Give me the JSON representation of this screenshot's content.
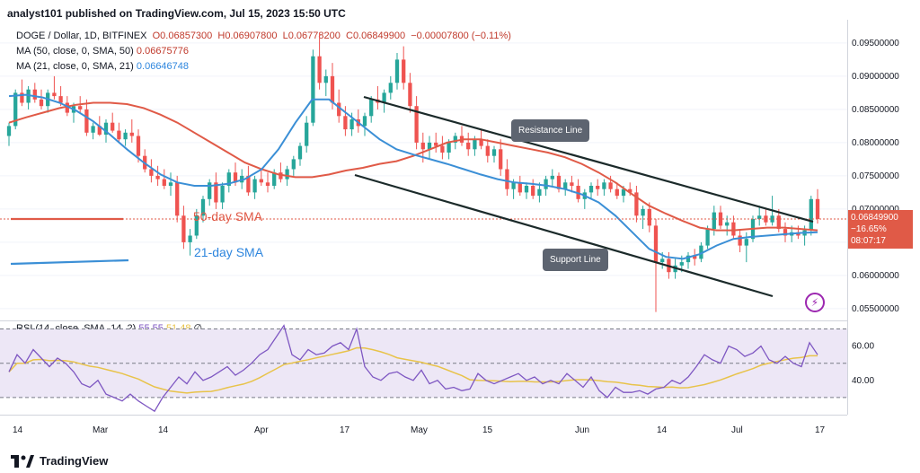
{
  "header": {
    "publisher": "analyst101 published on TradingView.com, Jul 15, 2023 15:50 UTC"
  },
  "legend": {
    "symbol": "DOGE / Dollar, 1D, BITFINEX",
    "o_label": "O",
    "o": "0.06857300",
    "h_label": "H",
    "h": "0.06907800",
    "l_label": "L",
    "l": "0.06778200",
    "c_label": "C",
    "c": "0.06849900",
    "change": "−0.00007800 (−0.11%)",
    "ma50_label": "MA (50, close, 0, SMA, 50)",
    "ma50_value": "0.06675776",
    "ma21_label": "MA (21, close, 0, SMA, 21)",
    "ma21_value": "0.06646748"
  },
  "rsi_legend": {
    "label": "RSI (14, close, SMA, 14, 2)",
    "rsi": "55.55",
    "sma": "51.48",
    "symbol": "∅"
  },
  "annotations": {
    "sma50": "50-day SMA",
    "sma21": "21-day SMA",
    "resistance": "Resistance Line",
    "support": "Support Line"
  },
  "price_badge": {
    "price": "0.06849900",
    "change": "−16.65%",
    "countdown": "08:07:17"
  },
  "footer": {
    "brand": "TradingView"
  },
  "colors": {
    "up": "#26a69a",
    "down": "#ef5350",
    "ma50": "#e05a47",
    "ma21": "#3b8fd6",
    "rsi": "#7e57c2",
    "rsi_sma": "#e8c34a",
    "rsi_band": "#ede7f6",
    "channel": "#1b2a2a",
    "badge": "#e05a47",
    "bolt": "#9c27b0"
  },
  "chart_data": {
    "type": "candlestick",
    "y_ticks": [
      "0.09500000",
      "0.09000000",
      "0.08500000",
      "0.08000000",
      "0.07500000",
      "0.07000000",
      "0.06500000",
      "0.06000000",
      "0.05500000"
    ],
    "ylim": [
      0.0535,
      0.0985
    ],
    "x_ticks": [
      "14",
      "Mar",
      "14",
      "Apr",
      "17",
      "May",
      "15",
      "Jun",
      "14",
      "Jul",
      "17"
    ],
    "rsi": {
      "y_ticks": [
        "60.00",
        "40.00"
      ],
      "upper": 70,
      "mid": 50,
      "lower": 30
    },
    "ohlc": [
      [
        0.081,
        0.083,
        0.0795,
        0.0825
      ],
      [
        0.0825,
        0.088,
        0.082,
        0.0875
      ],
      [
        0.0875,
        0.0895,
        0.0855,
        0.086
      ],
      [
        0.086,
        0.0885,
        0.085,
        0.088
      ],
      [
        0.088,
        0.089,
        0.086,
        0.0865
      ],
      [
        0.0865,
        0.088,
        0.085,
        0.0855
      ],
      [
        0.0855,
        0.088,
        0.0845,
        0.0875
      ],
      [
        0.0875,
        0.09,
        0.0865,
        0.087
      ],
      [
        0.087,
        0.0885,
        0.0855,
        0.086
      ],
      [
        0.086,
        0.087,
        0.084,
        0.0845
      ],
      [
        0.0845,
        0.086,
        0.083,
        0.0855
      ],
      [
        0.0855,
        0.087,
        0.0845,
        0.085
      ],
      [
        0.085,
        0.0865,
        0.081,
        0.0815
      ],
      [
        0.0815,
        0.083,
        0.0805,
        0.0825
      ],
      [
        0.0825,
        0.084,
        0.081,
        0.0812
      ],
      [
        0.0812,
        0.0835,
        0.08,
        0.083
      ],
      [
        0.083,
        0.0845,
        0.0815,
        0.0818
      ],
      [
        0.0818,
        0.083,
        0.08,
        0.0805
      ],
      [
        0.0805,
        0.082,
        0.0795,
        0.0815
      ],
      [
        0.0815,
        0.0835,
        0.08,
        0.081
      ],
      [
        0.081,
        0.082,
        0.077,
        0.078
      ],
      [
        0.078,
        0.079,
        0.0755,
        0.076
      ],
      [
        0.076,
        0.0775,
        0.074,
        0.075
      ],
      [
        0.075,
        0.0765,
        0.0735,
        0.0745
      ],
      [
        0.0745,
        0.076,
        0.073,
        0.0735
      ],
      [
        0.0735,
        0.0755,
        0.072,
        0.074
      ],
      [
        0.074,
        0.075,
        0.068,
        0.069
      ],
      [
        0.069,
        0.0705,
        0.064,
        0.065
      ],
      [
        0.065,
        0.067,
        0.063,
        0.066
      ],
      [
        0.066,
        0.07,
        0.0655,
        0.069
      ],
      [
        0.069,
        0.072,
        0.068,
        0.0715
      ],
      [
        0.0715,
        0.0745,
        0.0705,
        0.074
      ],
      [
        0.074,
        0.0755,
        0.07,
        0.071
      ],
      [
        0.071,
        0.074,
        0.07,
        0.0735
      ],
      [
        0.0735,
        0.076,
        0.0725,
        0.0755
      ],
      [
        0.0755,
        0.077,
        0.0735,
        0.074
      ],
      [
        0.074,
        0.076,
        0.073,
        0.075
      ],
      [
        0.075,
        0.0765,
        0.072,
        0.0725
      ],
      [
        0.0725,
        0.075,
        0.0715,
        0.0745
      ],
      [
        0.0745,
        0.076,
        0.0735,
        0.074
      ],
      [
        0.074,
        0.0755,
        0.0725,
        0.0735
      ],
      [
        0.0735,
        0.076,
        0.073,
        0.0755
      ],
      [
        0.0755,
        0.077,
        0.074,
        0.0745
      ],
      [
        0.0745,
        0.0765,
        0.0735,
        0.076
      ],
      [
        0.076,
        0.078,
        0.075,
        0.0775
      ],
      [
        0.0775,
        0.08,
        0.0765,
        0.0795
      ],
      [
        0.0795,
        0.084,
        0.0785,
        0.083
      ],
      [
        0.083,
        0.094,
        0.0825,
        0.093
      ],
      [
        0.093,
        0.0965,
        0.088,
        0.089
      ],
      [
        0.089,
        0.091,
        0.087,
        0.09
      ],
      [
        0.09,
        0.092,
        0.085,
        0.086
      ],
      [
        0.086,
        0.088,
        0.083,
        0.084
      ],
      [
        0.084,
        0.0855,
        0.081,
        0.082
      ],
      [
        0.082,
        0.0845,
        0.081,
        0.0835
      ],
      [
        0.0835,
        0.085,
        0.0815,
        0.0825
      ],
      [
        0.0825,
        0.0845,
        0.081,
        0.084
      ],
      [
        0.084,
        0.087,
        0.083,
        0.0865
      ],
      [
        0.0865,
        0.0885,
        0.085,
        0.086
      ],
      [
        0.086,
        0.088,
        0.0845,
        0.0875
      ],
      [
        0.0875,
        0.09,
        0.0865,
        0.089
      ],
      [
        0.089,
        0.0935,
        0.088,
        0.0925
      ],
      [
        0.0925,
        0.0945,
        0.088,
        0.089
      ],
      [
        0.089,
        0.0905,
        0.0845,
        0.0855
      ],
      [
        0.0855,
        0.087,
        0.079,
        0.08
      ],
      [
        0.08,
        0.0815,
        0.077,
        0.079
      ],
      [
        0.079,
        0.081,
        0.0775,
        0.08
      ],
      [
        0.08,
        0.0815,
        0.0785,
        0.0795
      ],
      [
        0.0795,
        0.081,
        0.0775,
        0.0785
      ],
      [
        0.0785,
        0.0805,
        0.0775,
        0.08
      ],
      [
        0.08,
        0.0815,
        0.079,
        0.081
      ],
      [
        0.081,
        0.0825,
        0.0795,
        0.08
      ],
      [
        0.08,
        0.0815,
        0.078,
        0.079
      ],
      [
        0.079,
        0.081,
        0.078,
        0.0805
      ],
      [
        0.0805,
        0.082,
        0.079,
        0.0795
      ],
      [
        0.0795,
        0.0805,
        0.077,
        0.078
      ],
      [
        0.078,
        0.0795,
        0.077,
        0.079
      ],
      [
        0.079,
        0.0805,
        0.075,
        0.076
      ],
      [
        0.076,
        0.0775,
        0.072,
        0.073
      ],
      [
        0.073,
        0.0745,
        0.0715,
        0.074
      ],
      [
        0.074,
        0.075,
        0.072,
        0.0725
      ],
      [
        0.0725,
        0.074,
        0.0715,
        0.0735
      ],
      [
        0.0735,
        0.0745,
        0.0715,
        0.072
      ],
      [
        0.072,
        0.074,
        0.071,
        0.073
      ],
      [
        0.073,
        0.075,
        0.072,
        0.0745
      ],
      [
        0.0745,
        0.076,
        0.0735,
        0.075
      ],
      [
        0.075,
        0.0755,
        0.0725,
        0.073
      ],
      [
        0.073,
        0.0745,
        0.072,
        0.074
      ],
      [
        0.074,
        0.075,
        0.0725,
        0.0735
      ],
      [
        0.0735,
        0.0745,
        0.071,
        0.0715
      ],
      [
        0.0715,
        0.073,
        0.07,
        0.0725
      ],
      [
        0.0725,
        0.074,
        0.0715,
        0.0735
      ],
      [
        0.0735,
        0.0745,
        0.072,
        0.073
      ],
      [
        0.073,
        0.0745,
        0.072,
        0.074
      ],
      [
        0.074,
        0.075,
        0.0725,
        0.073
      ],
      [
        0.073,
        0.074,
        0.0715,
        0.072
      ],
      [
        0.072,
        0.0735,
        0.071,
        0.073
      ],
      [
        0.073,
        0.074,
        0.072,
        0.0725
      ],
      [
        0.0725,
        0.0735,
        0.068,
        0.069
      ],
      [
        0.069,
        0.0705,
        0.067,
        0.07
      ],
      [
        0.07,
        0.071,
        0.0665,
        0.0675
      ],
      [
        0.0675,
        0.0685,
        0.0545,
        0.062
      ],
      [
        0.062,
        0.0635,
        0.061,
        0.0625
      ],
      [
        0.0625,
        0.0635,
        0.0595,
        0.0605
      ],
      [
        0.0605,
        0.0625,
        0.0595,
        0.0615
      ],
      [
        0.0615,
        0.063,
        0.0605,
        0.062
      ],
      [
        0.062,
        0.0635,
        0.061,
        0.063
      ],
      [
        0.063,
        0.064,
        0.0615,
        0.0625
      ],
      [
        0.0625,
        0.065,
        0.062,
        0.0645
      ],
      [
        0.0645,
        0.0675,
        0.064,
        0.067
      ],
      [
        0.067,
        0.0705,
        0.066,
        0.0695
      ],
      [
        0.0695,
        0.0705,
        0.067,
        0.0675
      ],
      [
        0.0675,
        0.069,
        0.066,
        0.068
      ],
      [
        0.068,
        0.069,
        0.0655,
        0.066
      ],
      [
        0.066,
        0.067,
        0.0635,
        0.0645
      ],
      [
        0.0645,
        0.0665,
        0.062,
        0.0655
      ],
      [
        0.0655,
        0.069,
        0.065,
        0.0685
      ],
      [
        0.0685,
        0.0705,
        0.0675,
        0.069
      ],
      [
        0.069,
        0.07,
        0.0675,
        0.068
      ],
      [
        0.068,
        0.072,
        0.0675,
        0.069
      ],
      [
        0.069,
        0.07,
        0.0665,
        0.067
      ],
      [
        0.067,
        0.068,
        0.065,
        0.066
      ],
      [
        0.066,
        0.0675,
        0.065,
        0.0665
      ],
      [
        0.0665,
        0.0675,
        0.0655,
        0.066
      ],
      [
        0.066,
        0.0675,
        0.0645,
        0.0668
      ],
      [
        0.0668,
        0.072,
        0.066,
        0.0715
      ],
      [
        0.0715,
        0.073,
        0.0678,
        0.0685
      ]
    ],
    "ma50": [
      0.083,
      0.0838,
      0.0845,
      0.0852,
      0.0857,
      0.086,
      0.086,
      0.0858,
      0.0852,
      0.0842,
      0.083,
      0.0815,
      0.08,
      0.0785,
      0.077,
      0.076,
      0.0752,
      0.0748,
      0.0748,
      0.0752,
      0.0758,
      0.0762,
      0.0768,
      0.0772,
      0.078,
      0.079,
      0.08,
      0.0805,
      0.0805,
      0.08,
      0.0795,
      0.079,
      0.0785,
      0.0778,
      0.0768,
      0.0755,
      0.074,
      0.0722,
      0.0705,
      0.0693,
      0.0682,
      0.0672,
      0.0668,
      0.0668,
      0.067,
      0.0672,
      0.0672,
      0.067,
      0.0668
    ],
    "ma21": [
      0.087,
      0.0872,
      0.0868,
      0.086,
      0.0848,
      0.0832,
      0.0812,
      0.079,
      0.077,
      0.0752,
      0.074,
      0.0735,
      0.0735,
      0.0738,
      0.0745,
      0.076,
      0.079,
      0.083,
      0.0865,
      0.0865,
      0.0845,
      0.0825,
      0.0805,
      0.079,
      0.0782,
      0.0775,
      0.0768,
      0.076,
      0.0752,
      0.0745,
      0.074,
      0.0738,
      0.0735,
      0.073,
      0.0722,
      0.071,
      0.069,
      0.0665,
      0.064,
      0.0628,
      0.0625,
      0.0632,
      0.0645,
      0.0655,
      0.0658,
      0.066,
      0.0662,
      0.0664,
      0.0665
    ],
    "rsi_values": [
      45,
      55,
      50,
      58,
      53,
      48,
      53,
      50,
      45,
      38,
      36,
      40,
      32,
      30,
      28,
      32,
      28,
      25,
      22,
      30,
      36,
      42,
      38,
      45,
      40,
      42,
      45,
      48,
      43,
      46,
      50,
      55,
      58,
      65,
      72,
      55,
      52,
      58,
      55,
      56,
      60,
      62,
      58,
      70,
      48,
      42,
      40,
      44,
      45,
      42,
      40,
      46,
      38,
      40,
      35,
      36,
      34,
      35,
      44,
      40,
      38,
      40,
      42,
      44,
      40,
      42,
      38,
      40,
      38,
      44,
      40,
      36,
      42,
      34,
      30,
      36,
      33,
      33,
      34,
      32,
      35,
      36,
      40,
      38,
      42,
      48,
      55,
      52,
      50,
      60,
      58,
      54,
      56,
      60,
      52,
      50,
      54,
      50,
      48,
      62,
      55
    ]
  }
}
